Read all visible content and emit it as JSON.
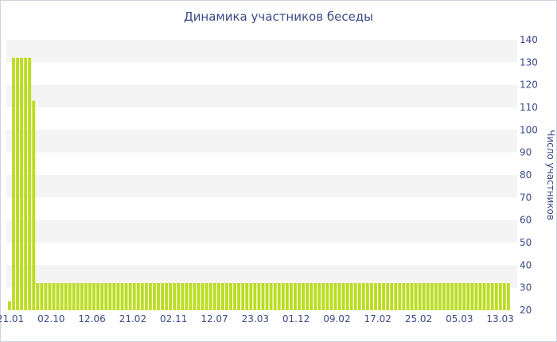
{
  "chart_data": {
    "type": "bar",
    "title": "Динамика участников беседы",
    "ylabel": "Число участников",
    "xlabel": "",
    "ylim": [
      20,
      140
    ],
    "yticks": [
      20,
      30,
      40,
      50,
      60,
      70,
      80,
      90,
      100,
      110,
      120,
      130,
      140
    ],
    "x_tick_labels": [
      "21.01",
      "02.10",
      "12.06",
      "21.02",
      "02.11",
      "12.07",
      "23.03",
      "01.12",
      "09.02",
      "17.02",
      "25.02",
      "05.03",
      "13.03"
    ],
    "bar_color": "#bbdd22",
    "band_color": "#f4f4f4",
    "grid": true,
    "values": [
      24,
      132,
      132,
      132,
      132,
      132,
      113,
      32,
      32,
      32,
      32,
      32,
      32,
      32,
      32,
      32,
      32,
      32,
      32,
      32,
      32,
      32,
      32,
      32,
      32,
      32,
      32,
      32,
      32,
      32,
      32,
      32,
      32,
      32,
      32,
      32,
      32,
      32,
      32,
      32,
      32,
      32,
      32,
      32,
      32,
      32,
      32,
      32,
      32,
      32,
      32,
      32,
      32,
      32,
      32,
      32,
      32,
      32,
      32,
      32,
      32,
      32,
      32,
      32,
      32,
      32,
      32,
      32,
      32,
      32,
      32,
      32,
      32,
      32,
      32,
      32,
      32,
      32,
      32,
      32,
      32,
      32,
      32,
      32,
      32,
      32,
      32,
      32,
      32,
      32,
      32,
      32,
      32,
      32,
      32,
      32,
      32,
      32,
      32,
      32,
      32,
      32,
      32,
      32,
      32,
      32,
      32,
      32,
      32,
      32,
      32,
      32,
      32,
      32,
      32,
      32,
      32,
      32,
      32,
      32,
      32,
      32,
      32,
      32,
      32
    ]
  }
}
